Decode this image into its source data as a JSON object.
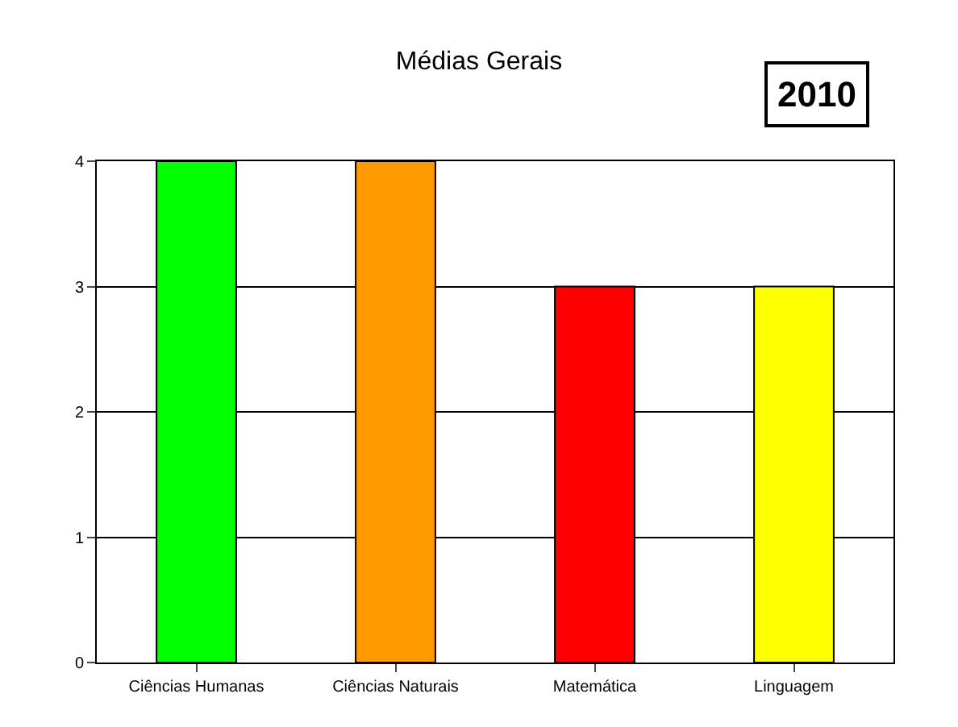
{
  "chart_data": {
    "type": "bar",
    "title": "Médias Gerais",
    "categories": [
      "Ciências Humanas",
      "Ciências Naturais",
      "Matemática",
      "Linguagem"
    ],
    "values": [
      4,
      4,
      3,
      3
    ],
    "colors": [
      "#00ff00",
      "#ff9900",
      "#ff0000",
      "#ffff00"
    ],
    "ylim": [
      0,
      4
    ],
    "yticks": [
      0,
      1,
      2,
      3,
      4
    ],
    "grid": "y",
    "legend": false,
    "annotations": [
      "2010"
    ]
  }
}
